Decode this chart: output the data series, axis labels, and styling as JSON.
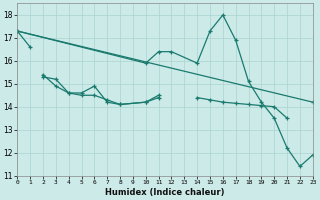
{
  "xlabel": "Humidex (Indice chaleur)",
  "bg_color": "#cceae8",
  "line_color": "#1a7a6e",
  "grid_color": "#aad4d0",
  "xlim": [
    0,
    23
  ],
  "ylim": [
    11,
    18.5
  ],
  "yticks": [
    11,
    12,
    13,
    14,
    15,
    16,
    17,
    18
  ],
  "xticks": [
    0,
    1,
    2,
    3,
    4,
    5,
    6,
    7,
    8,
    9,
    10,
    11,
    12,
    13,
    14,
    15,
    16,
    17,
    18,
    19,
    20,
    21,
    22,
    23
  ],
  "series": [
    {
      "x": [
        0,
        1
      ],
      "y": [
        17.3,
        16.6
      ]
    },
    {
      "x": [
        2,
        3,
        4,
        5,
        6,
        7,
        8,
        10,
        11
      ],
      "y": [
        15.4,
        14.9,
        14.6,
        14.6,
        14.9,
        14.2,
        14.1,
        14.2,
        14.4
      ]
    },
    {
      "x": [
        2,
        3,
        4,
        5,
        6,
        7,
        8,
        10,
        11
      ],
      "y": [
        15.3,
        15.2,
        14.6,
        14.5,
        14.5,
        14.3,
        14.1,
        14.2,
        14.5
      ]
    },
    {
      "x": [
        0,
        10,
        11,
        12,
        14,
        15,
        16,
        17,
        18,
        19,
        20,
        21,
        22,
        23
      ],
      "y": [
        17.3,
        15.9,
        16.4,
        16.4,
        15.9,
        17.3,
        18.0,
        16.9,
        15.1,
        14.2,
        13.5,
        12.2,
        11.4,
        11.9
      ]
    },
    {
      "x": [
        0,
        23
      ],
      "y": [
        17.3,
        14.2
      ]
    },
    {
      "x": [
        14,
        15,
        16,
        17,
        18,
        19,
        20,
        21
      ],
      "y": [
        14.4,
        14.3,
        14.2,
        14.15,
        14.1,
        14.05,
        14.0,
        13.5
      ]
    }
  ]
}
